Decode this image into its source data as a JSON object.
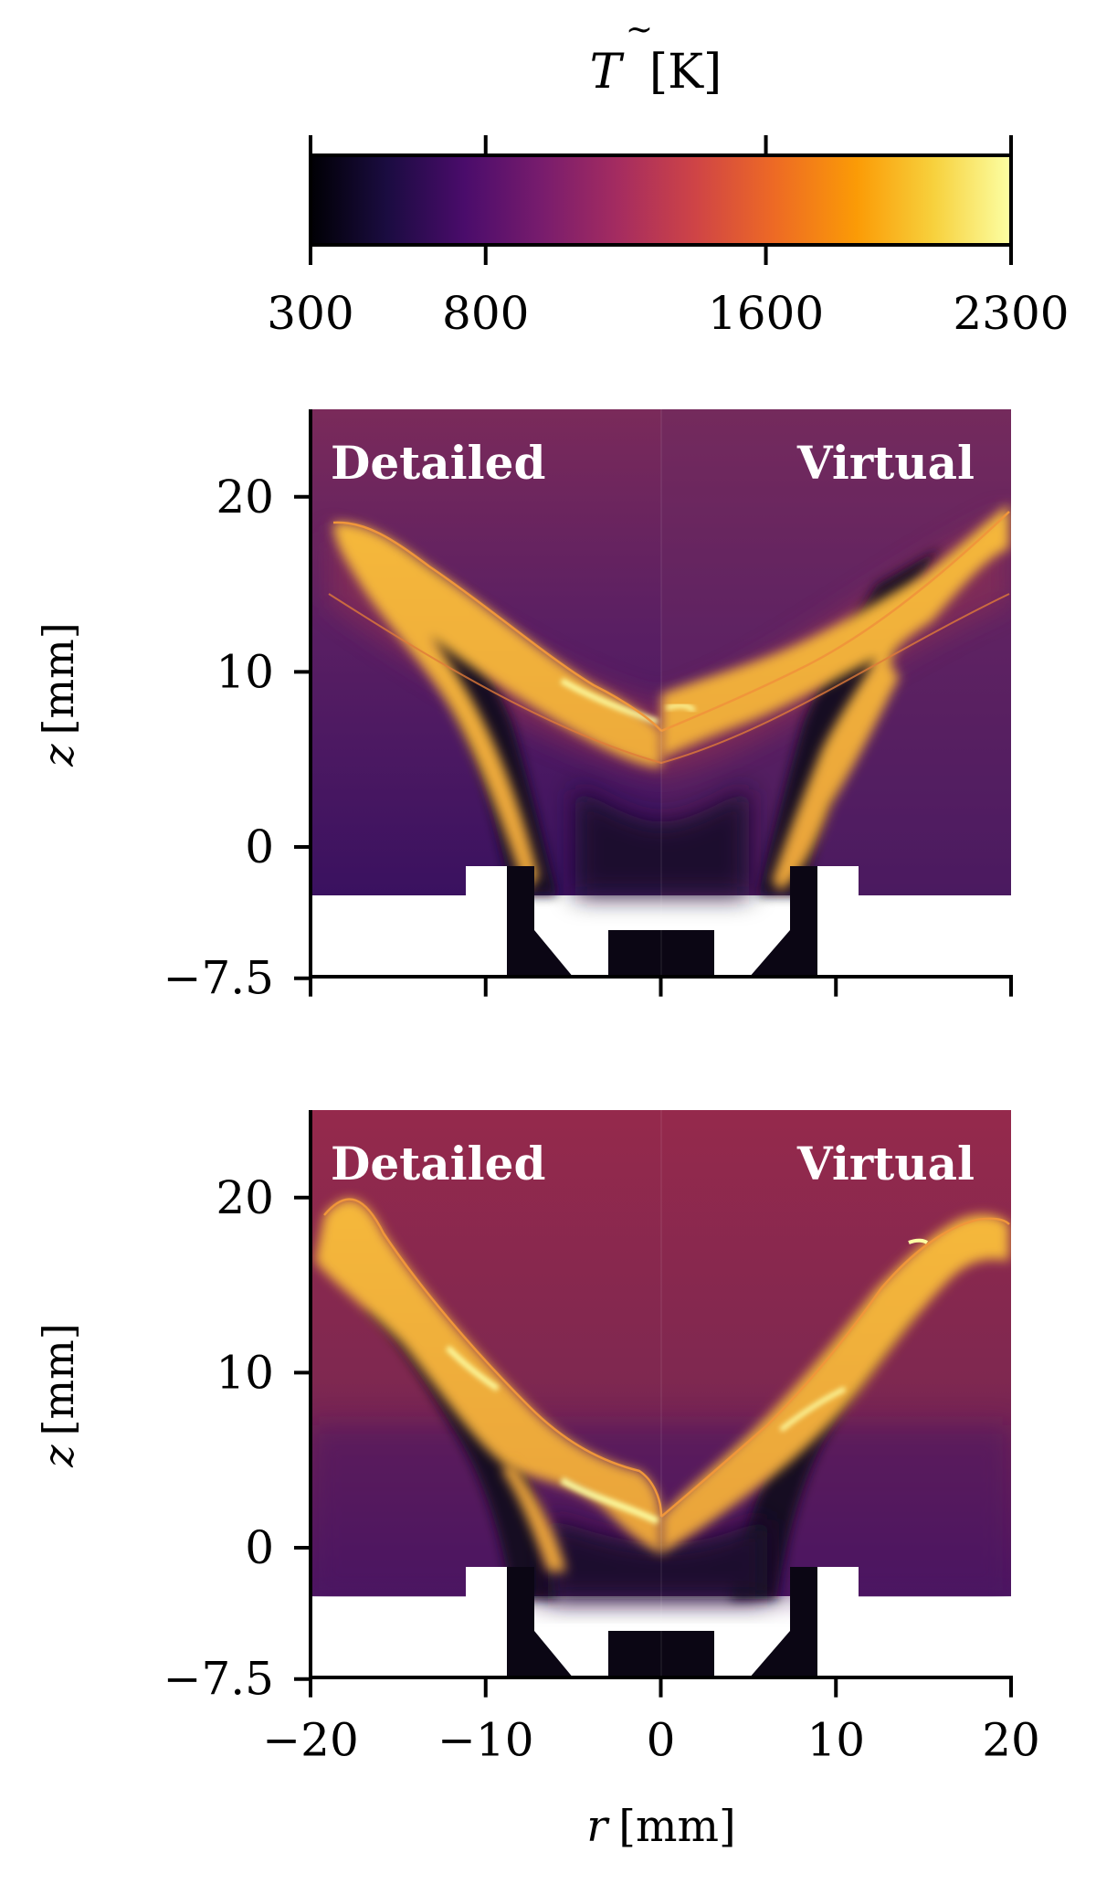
{
  "colorbar": {
    "label": "T̃ [K]",
    "label_symbol": "T",
    "label_unit": "[K]",
    "min": 300,
    "max": 2300,
    "ticks": [
      "300",
      "800",
      "1600",
      "2300"
    ],
    "tick_values": [
      300,
      800,
      1600,
      2300
    ],
    "colormap": "inferno",
    "stops": [
      "#000004",
      "#1b0c41",
      "#4a0c6b",
      "#781c6d",
      "#a52c60",
      "#cf4446",
      "#ed6925",
      "#fb9b06",
      "#f7d13d",
      "#fcffa4"
    ]
  },
  "panels": [
    {
      "left_label": "Detailed",
      "right_label": "Virtual",
      "ylabel": "z [mm]",
      "yticks": [
        "20",
        "10",
        "0",
        "−7.5"
      ],
      "ytick_values": [
        20,
        10,
        0,
        -7.5
      ],
      "background_color": "#6e2a5a"
    },
    {
      "left_label": "Detailed",
      "right_label": "Virtual",
      "ylabel": "z [mm]",
      "yticks": [
        "20",
        "10",
        "0",
        "−7.5"
      ],
      "ytick_values": [
        20,
        10,
        0,
        -7.5
      ],
      "background_color": "#8c2a4e"
    }
  ],
  "xaxis": {
    "label": "r [mm]",
    "ticks": [
      "−20",
      "−10",
      "0",
      "10",
      "20"
    ],
    "tick_values": [
      -20,
      -10,
      0,
      10,
      20
    ]
  },
  "colors": {
    "flame_core": "#f7d13d",
    "flame_hot": "#fcffa4",
    "flame_edge": "#f0963a",
    "cold_jet": "#0b0614",
    "coflow": "#3a0f5c"
  }
}
